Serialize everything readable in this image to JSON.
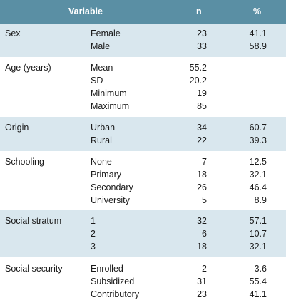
{
  "header": {
    "variable": "Variable",
    "n": "n",
    "pct": "%"
  },
  "groups": [
    {
      "label": "Sex",
      "rows": [
        {
          "sub": "Female",
          "n": "23",
          "pct": "41.1"
        },
        {
          "sub": "Male",
          "n": "33",
          "pct": "58.9"
        }
      ]
    },
    {
      "label": "Age (years)",
      "rows": [
        {
          "sub": "Mean",
          "n": "55.2",
          "pct": ""
        },
        {
          "sub": "SD",
          "n": "20.2",
          "pct": ""
        },
        {
          "sub": "Minimum",
          "n": "19",
          "pct": ""
        },
        {
          "sub": "Maximum",
          "n": "85",
          "pct": ""
        }
      ]
    },
    {
      "label": "Origin",
      "rows": [
        {
          "sub": "Urban",
          "n": "34",
          "pct": "60.7"
        },
        {
          "sub": "Rural",
          "n": "22",
          "pct": "39.3"
        }
      ]
    },
    {
      "label": "Schooling",
      "rows": [
        {
          "sub": "None",
          "n": "7",
          "pct": "12.5"
        },
        {
          "sub": "Primary",
          "n": "18",
          "pct": "32.1"
        },
        {
          "sub": "Secondary",
          "n": "26",
          "pct": "46.4"
        },
        {
          "sub": "University",
          "n": "5",
          "pct": "8.9"
        }
      ]
    },
    {
      "label": "Social stratum",
      "rows": [
        {
          "sub": "1",
          "n": "32",
          "pct": "57.1"
        },
        {
          "sub": "2",
          "n": "6",
          "pct": "10.7"
        },
        {
          "sub": "3",
          "n": "18",
          "pct": "32.1"
        }
      ]
    },
    {
      "label": "Social security",
      "rows": [
        {
          "sub": "Enrolled",
          "n": "2",
          "pct": "3.6"
        },
        {
          "sub": "Subsidized",
          "n": "31",
          "pct": "55.4"
        },
        {
          "sub": "Contributory",
          "n": "23",
          "pct": "41.1"
        }
      ]
    }
  ]
}
